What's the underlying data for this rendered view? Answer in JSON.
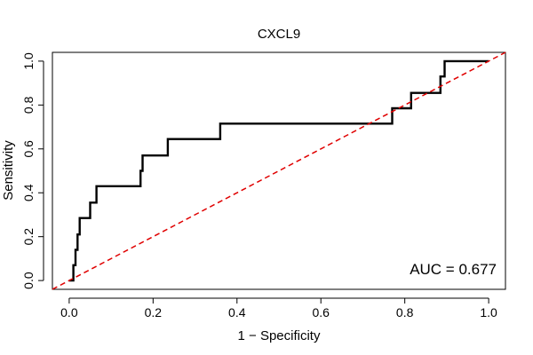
{
  "chart_data": {
    "type": "line",
    "title": "CXCL9",
    "xlabel": "1 − Specificity",
    "ylabel": "Sensitivity",
    "xlim": [
      -0.04,
      1.04
    ],
    "ylim": [
      -0.04,
      1.04
    ],
    "xticks": [
      0.0,
      0.2,
      0.4,
      0.6,
      0.8,
      1.0
    ],
    "xtick_labels": [
      "0.0",
      "0.2",
      "0.4",
      "0.6",
      "0.8",
      "1.0"
    ],
    "yticks": [
      0.0,
      0.2,
      0.4,
      0.6,
      0.8,
      1.0
    ],
    "ytick_labels": [
      "0.0",
      "0.2",
      "0.4",
      "0.6",
      "0.8",
      "1.0"
    ],
    "grid": false,
    "annotation": "AUC = 0.677",
    "series": [
      {
        "name": "ROC curve",
        "color": "#000000",
        "style": "solid",
        "x": [
          0.0,
          0.01,
          0.01,
          0.015,
          0.015,
          0.02,
          0.02,
          0.025,
          0.025,
          0.05,
          0.05,
          0.065,
          0.065,
          0.17,
          0.17,
          0.175,
          0.175,
          0.235,
          0.235,
          0.36,
          0.36,
          0.77,
          0.77,
          0.815,
          0.815,
          0.885,
          0.885,
          0.895,
          0.895,
          1.0
        ],
        "y": [
          0.0,
          0.0,
          0.07,
          0.07,
          0.14,
          0.14,
          0.21,
          0.21,
          0.285,
          0.285,
          0.355,
          0.355,
          0.43,
          0.43,
          0.5,
          0.5,
          0.57,
          0.57,
          0.645,
          0.645,
          0.715,
          0.715,
          0.785,
          0.785,
          0.855,
          0.855,
          0.93,
          0.93,
          1.0,
          1.0
        ]
      },
      {
        "name": "Reference diagonal",
        "color": "#e00000",
        "style": "dashed",
        "x": [
          -0.04,
          1.04
        ],
        "y": [
          -0.04,
          1.04
        ]
      }
    ]
  }
}
